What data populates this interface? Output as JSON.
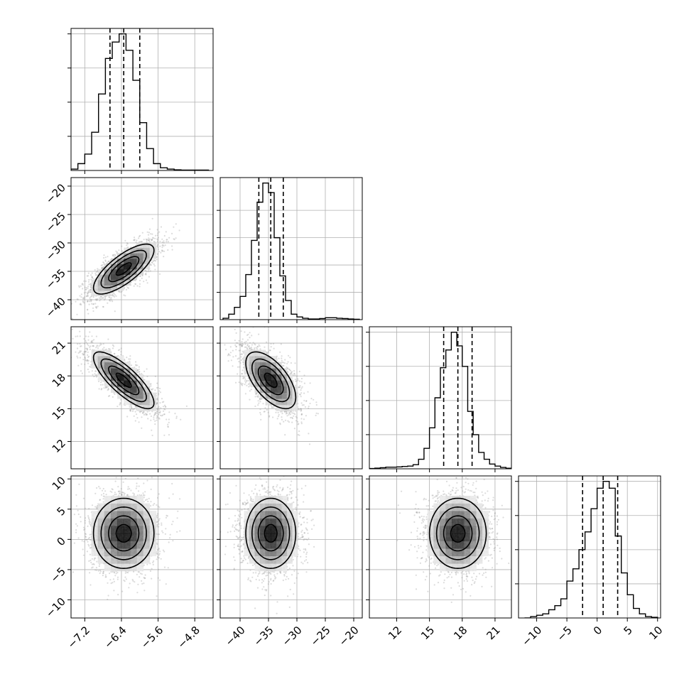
{
  "chart_data": {
    "type": "corner",
    "parameters": [
      {
        "range": [
          -7.5,
          -4.4
        ],
        "ticks": [
          -7.2,
          -6.4,
          -5.6,
          -4.8
        ],
        "tick_labels": [
          "−7.2",
          "−6.4",
          "−5.6",
          "−4.8"
        ],
        "median": -6.35,
        "q16": -6.65,
        "q84": -6.0,
        "hist_bins": [
          -7.5,
          -7.35,
          -7.2,
          -7.05,
          -6.9,
          -6.75,
          -6.6,
          -6.45,
          -6.3,
          -6.15,
          -6.0,
          -5.85,
          -5.7,
          -5.55,
          -5.4,
          -5.25,
          -5.1,
          -4.95,
          -4.8,
          -4.65,
          -4.5
        ],
        "hist_values": [
          0.01,
          0.05,
          0.12,
          0.28,
          0.56,
          0.82,
          0.94,
          1.0,
          0.88,
          0.66,
          0.35,
          0.16,
          0.05,
          0.02,
          0.01,
          0.005,
          0.003,
          0.003,
          0.003,
          0.003
        ],
        "hist_ticks": [
          0.25,
          0.5,
          0.75,
          1.0
        ]
      },
      {
        "range": [
          -43.5,
          -18.5
        ],
        "ticks": [
          -40,
          -35,
          -30,
          -25,
          -20
        ],
        "tick_labels": [
          "−40",
          "−35",
          "−30",
          "−25",
          "−20"
        ],
        "median": -34.6,
        "q16": -36.7,
        "q84": -32.4,
        "hist_bins": [
          -43.0,
          -42.0,
          -41.0,
          -40.0,
          -39.0,
          -38.0,
          -37.0,
          -36.0,
          -35.0,
          -34.0,
          -33.0,
          -32.0,
          -31.0,
          -30.0,
          -29.0,
          -28.0,
          -27.0,
          -26.0,
          -25.0,
          -24.0,
          -23.0,
          -22.0,
          -21.0,
          -20.0,
          -19.0
        ],
        "hist_values": [
          0.01,
          0.04,
          0.09,
          0.17,
          0.33,
          0.58,
          0.86,
          1.0,
          0.93,
          0.6,
          0.32,
          0.14,
          0.04,
          0.02,
          0.01,
          0.005,
          0.005,
          0.008,
          0.014,
          0.014,
          0.01,
          0.008,
          0.005,
          0.003
        ],
        "hist_ticks": [
          0.2,
          0.4,
          0.6,
          0.8
        ]
      },
      {
        "range": [
          9.5,
          22.5
        ],
        "ticks": [
          12,
          15,
          18,
          21
        ],
        "tick_labels": [
          "12",
          "15",
          "18",
          "21"
        ],
        "median": 17.6,
        "q16": 16.3,
        "q84": 18.9,
        "hist_bins": [
          9.5,
          10.0,
          10.5,
          11.0,
          11.5,
          12.0,
          12.5,
          13.0,
          13.5,
          14.0,
          14.5,
          15.0,
          15.5,
          16.0,
          16.5,
          17.0,
          17.5,
          18.0,
          18.5,
          19.0,
          19.5,
          20.0,
          20.5,
          21.0,
          21.5,
          22.0,
          22.5
        ],
        "hist_values": [
          0.002,
          0.005,
          0.008,
          0.012,
          0.012,
          0.014,
          0.017,
          0.02,
          0.03,
          0.07,
          0.15,
          0.3,
          0.52,
          0.74,
          0.87,
          1.0,
          0.9,
          0.75,
          0.42,
          0.25,
          0.12,
          0.07,
          0.035,
          0.02,
          0.01,
          0.004
        ],
        "hist_ticks": [
          0.25,
          0.5,
          0.75,
          1.0
        ]
      },
      {
        "range": [
          -13.0,
          10.5
        ],
        "ticks": [
          -10,
          -5,
          0,
          5,
          10
        ],
        "tick_labels": [
          "−10",
          "−5",
          "0",
          "5",
          "10"
        ],
        "median": 1.0,
        "q16": -2.4,
        "q84": 3.4,
        "hist_bins": [
          -12.0,
          -11.0,
          -10.0,
          -9.0,
          -8.0,
          -7.0,
          -6.0,
          -5.0,
          -4.0,
          -3.0,
          -2.0,
          -1.0,
          0.0,
          1.0,
          2.0,
          3.0,
          4.0,
          5.0,
          6.0,
          7.0,
          8.0,
          9.0,
          10.0
        ],
        "hist_values": [
          0.0,
          0.01,
          0.02,
          0.03,
          0.06,
          0.09,
          0.14,
          0.27,
          0.36,
          0.5,
          0.63,
          0.8,
          0.95,
          1.0,
          0.95,
          0.6,
          0.33,
          0.17,
          0.07,
          0.03,
          0.01,
          0.005
        ],
        "hist_ticks": [
          0.25,
          0.5,
          0.75,
          1.0
        ]
      }
    ],
    "correlations": [
      [
        1.0,
        0.75,
        -0.8,
        0.0
      ],
      [
        0.75,
        1.0,
        -0.6,
        0.0
      ],
      [
        -0.8,
        -0.6,
        1.0,
        0.0
      ],
      [
        0.0,
        0.0,
        0.0,
        1.0
      ]
    ],
    "spreads": [
      0.33,
      2.2,
      1.3,
      2.9
    ],
    "contour_levels": [
      0.5,
      1.0,
      1.5,
      2.0
    ],
    "grid": true,
    "colors": {
      "line": "#000000",
      "grid": "#b0b0b0",
      "points": "#9a9a9a"
    }
  }
}
